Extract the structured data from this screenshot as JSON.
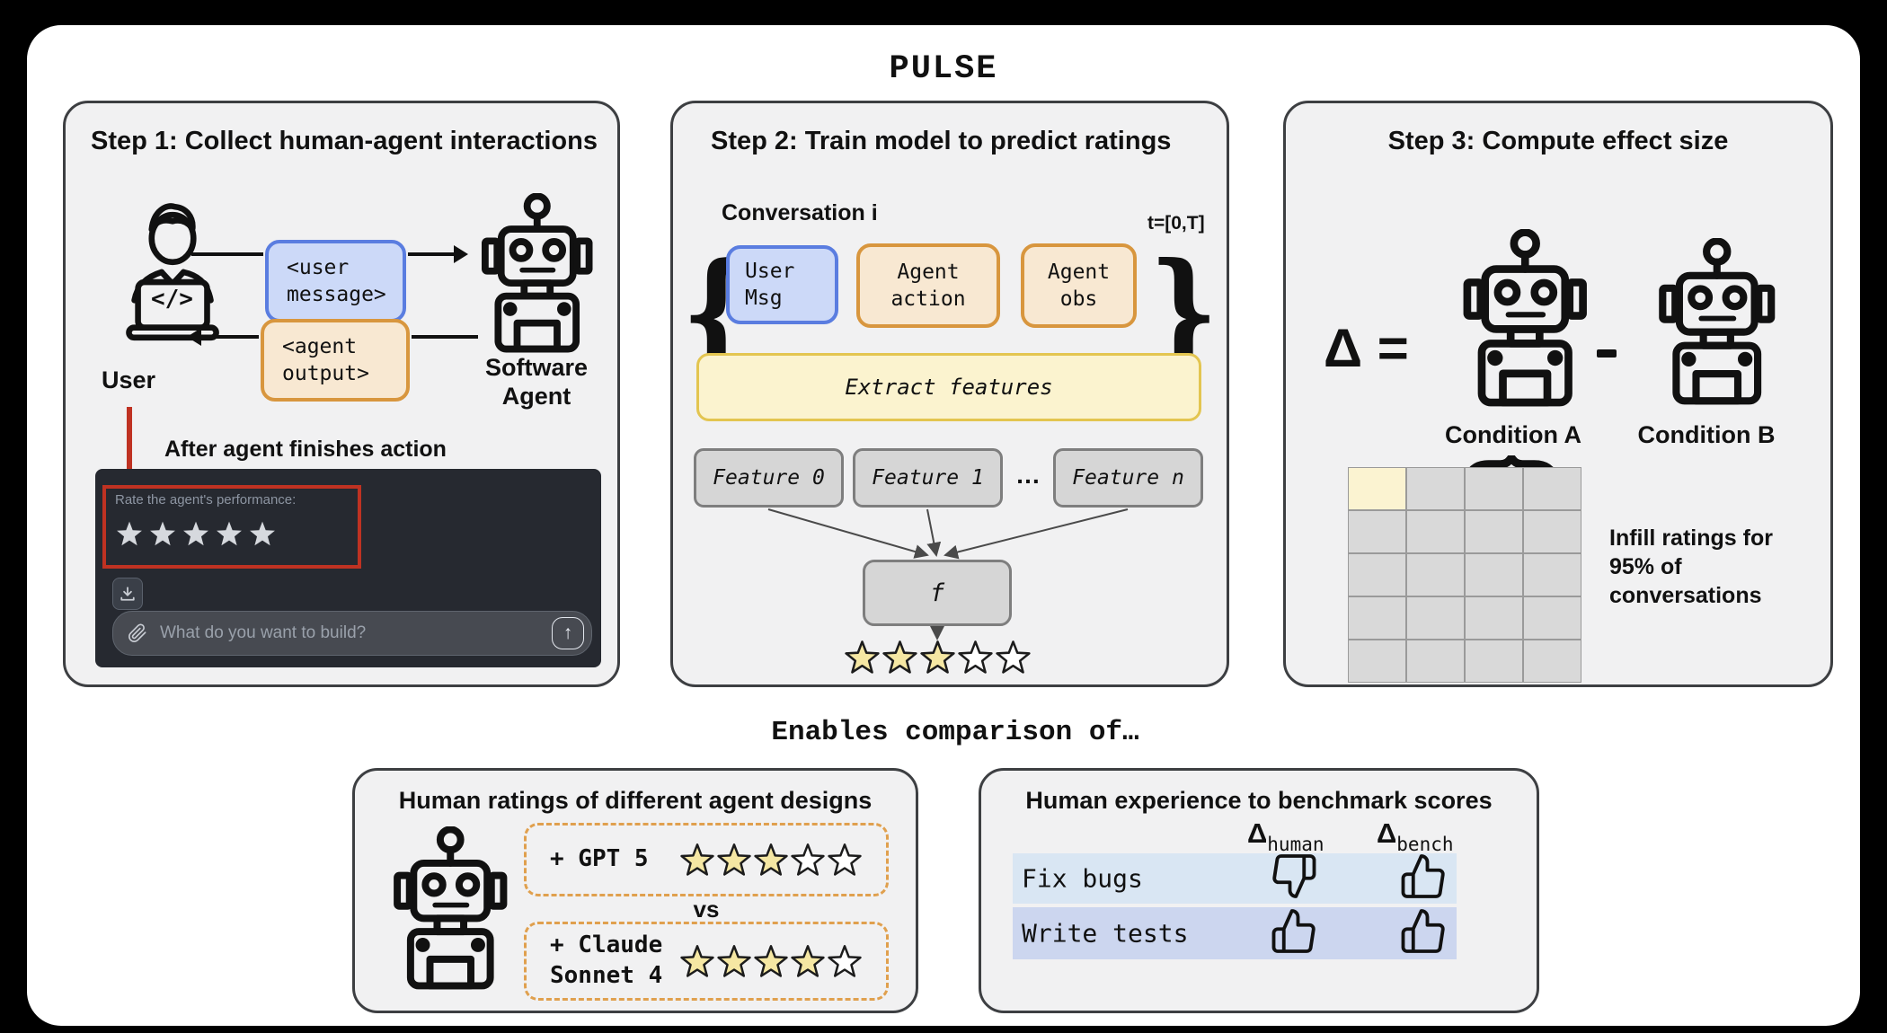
{
  "title": "PULSE",
  "step1": {
    "header": "Step 1: Collect human-agent interactions",
    "user_label": "User",
    "agent_label": "Software Agent",
    "code_symbol": "</>",
    "user_message": "<user message>",
    "agent_output": "<agent output>",
    "after_note": "After agent finishes action",
    "chat": {
      "rate_prompt": "Rate the agent's performance:",
      "stars": {
        "filled": 5,
        "total": 5
      },
      "placeholder": "What do you want to build?",
      "send_glyph": "↑"
    }
  },
  "step2": {
    "header": "Step 2: Train model to predict ratings",
    "conversation_label": "Conversation i",
    "time_label": "t=[0,T]",
    "brace_open": "{",
    "brace_close": "}",
    "boxes": [
      "User Msg",
      "Agent action",
      "Agent obs"
    ],
    "extract_label": "Extract features",
    "features": [
      "Feature 0",
      "Feature 1",
      "Feature n"
    ],
    "ellipsis": "…",
    "f_label": "f",
    "rating": {
      "filled": 3,
      "total": 5
    }
  },
  "step3": {
    "header": "Step 3: Compute effect size",
    "delta_equals": "Δ =",
    "condition_a": "Condition A",
    "condition_b": "Condition B",
    "grid": {
      "rows": 5,
      "cols": 4
    },
    "infill_note": "Infill ratings for 95% of conversations"
  },
  "enables": "Enables comparison of…",
  "compare_left": {
    "header": "Human ratings of different agent designs",
    "options": [
      {
        "label": "+ GPT 5",
        "rating": {
          "filled": 3,
          "total": 5
        }
      },
      {
        "label": "+ Claude Sonnet 4",
        "rating": {
          "filled": 4,
          "total": 5
        }
      }
    ],
    "vs": "vs"
  },
  "compare_right": {
    "header": "Human experience to benchmark scores",
    "col_delta": "Δ",
    "col_subs": [
      "human",
      "bench"
    ],
    "rows": [
      {
        "label": "Fix bugs",
        "human": "down",
        "bench": "up"
      },
      {
        "label": "Write tests",
        "human": "up",
        "bench": "up"
      }
    ]
  },
  "colors": {
    "red": "#bf3222",
    "blue_fill": "#ccd9f8",
    "blue_border": "#5a7de0",
    "orange_fill": "#f8e8d2",
    "orange_border": "#d8963e",
    "yellow_fill": "#fbf3cf",
    "yellow_border": "#e3c550",
    "gray_fill": "#d6d6d6",
    "gray_border": "#7e7e7e",
    "star_fill": "#f5e7a3",
    "chat_bg": "#262930",
    "row_a": "#d9e6f3",
    "row_b": "#ccd6ef",
    "box_bg": "#f1f1f2",
    "box_border": "#3d3f42",
    "cell": "#d9d9d9",
    "cell_hl": "#fbf3d1"
  }
}
